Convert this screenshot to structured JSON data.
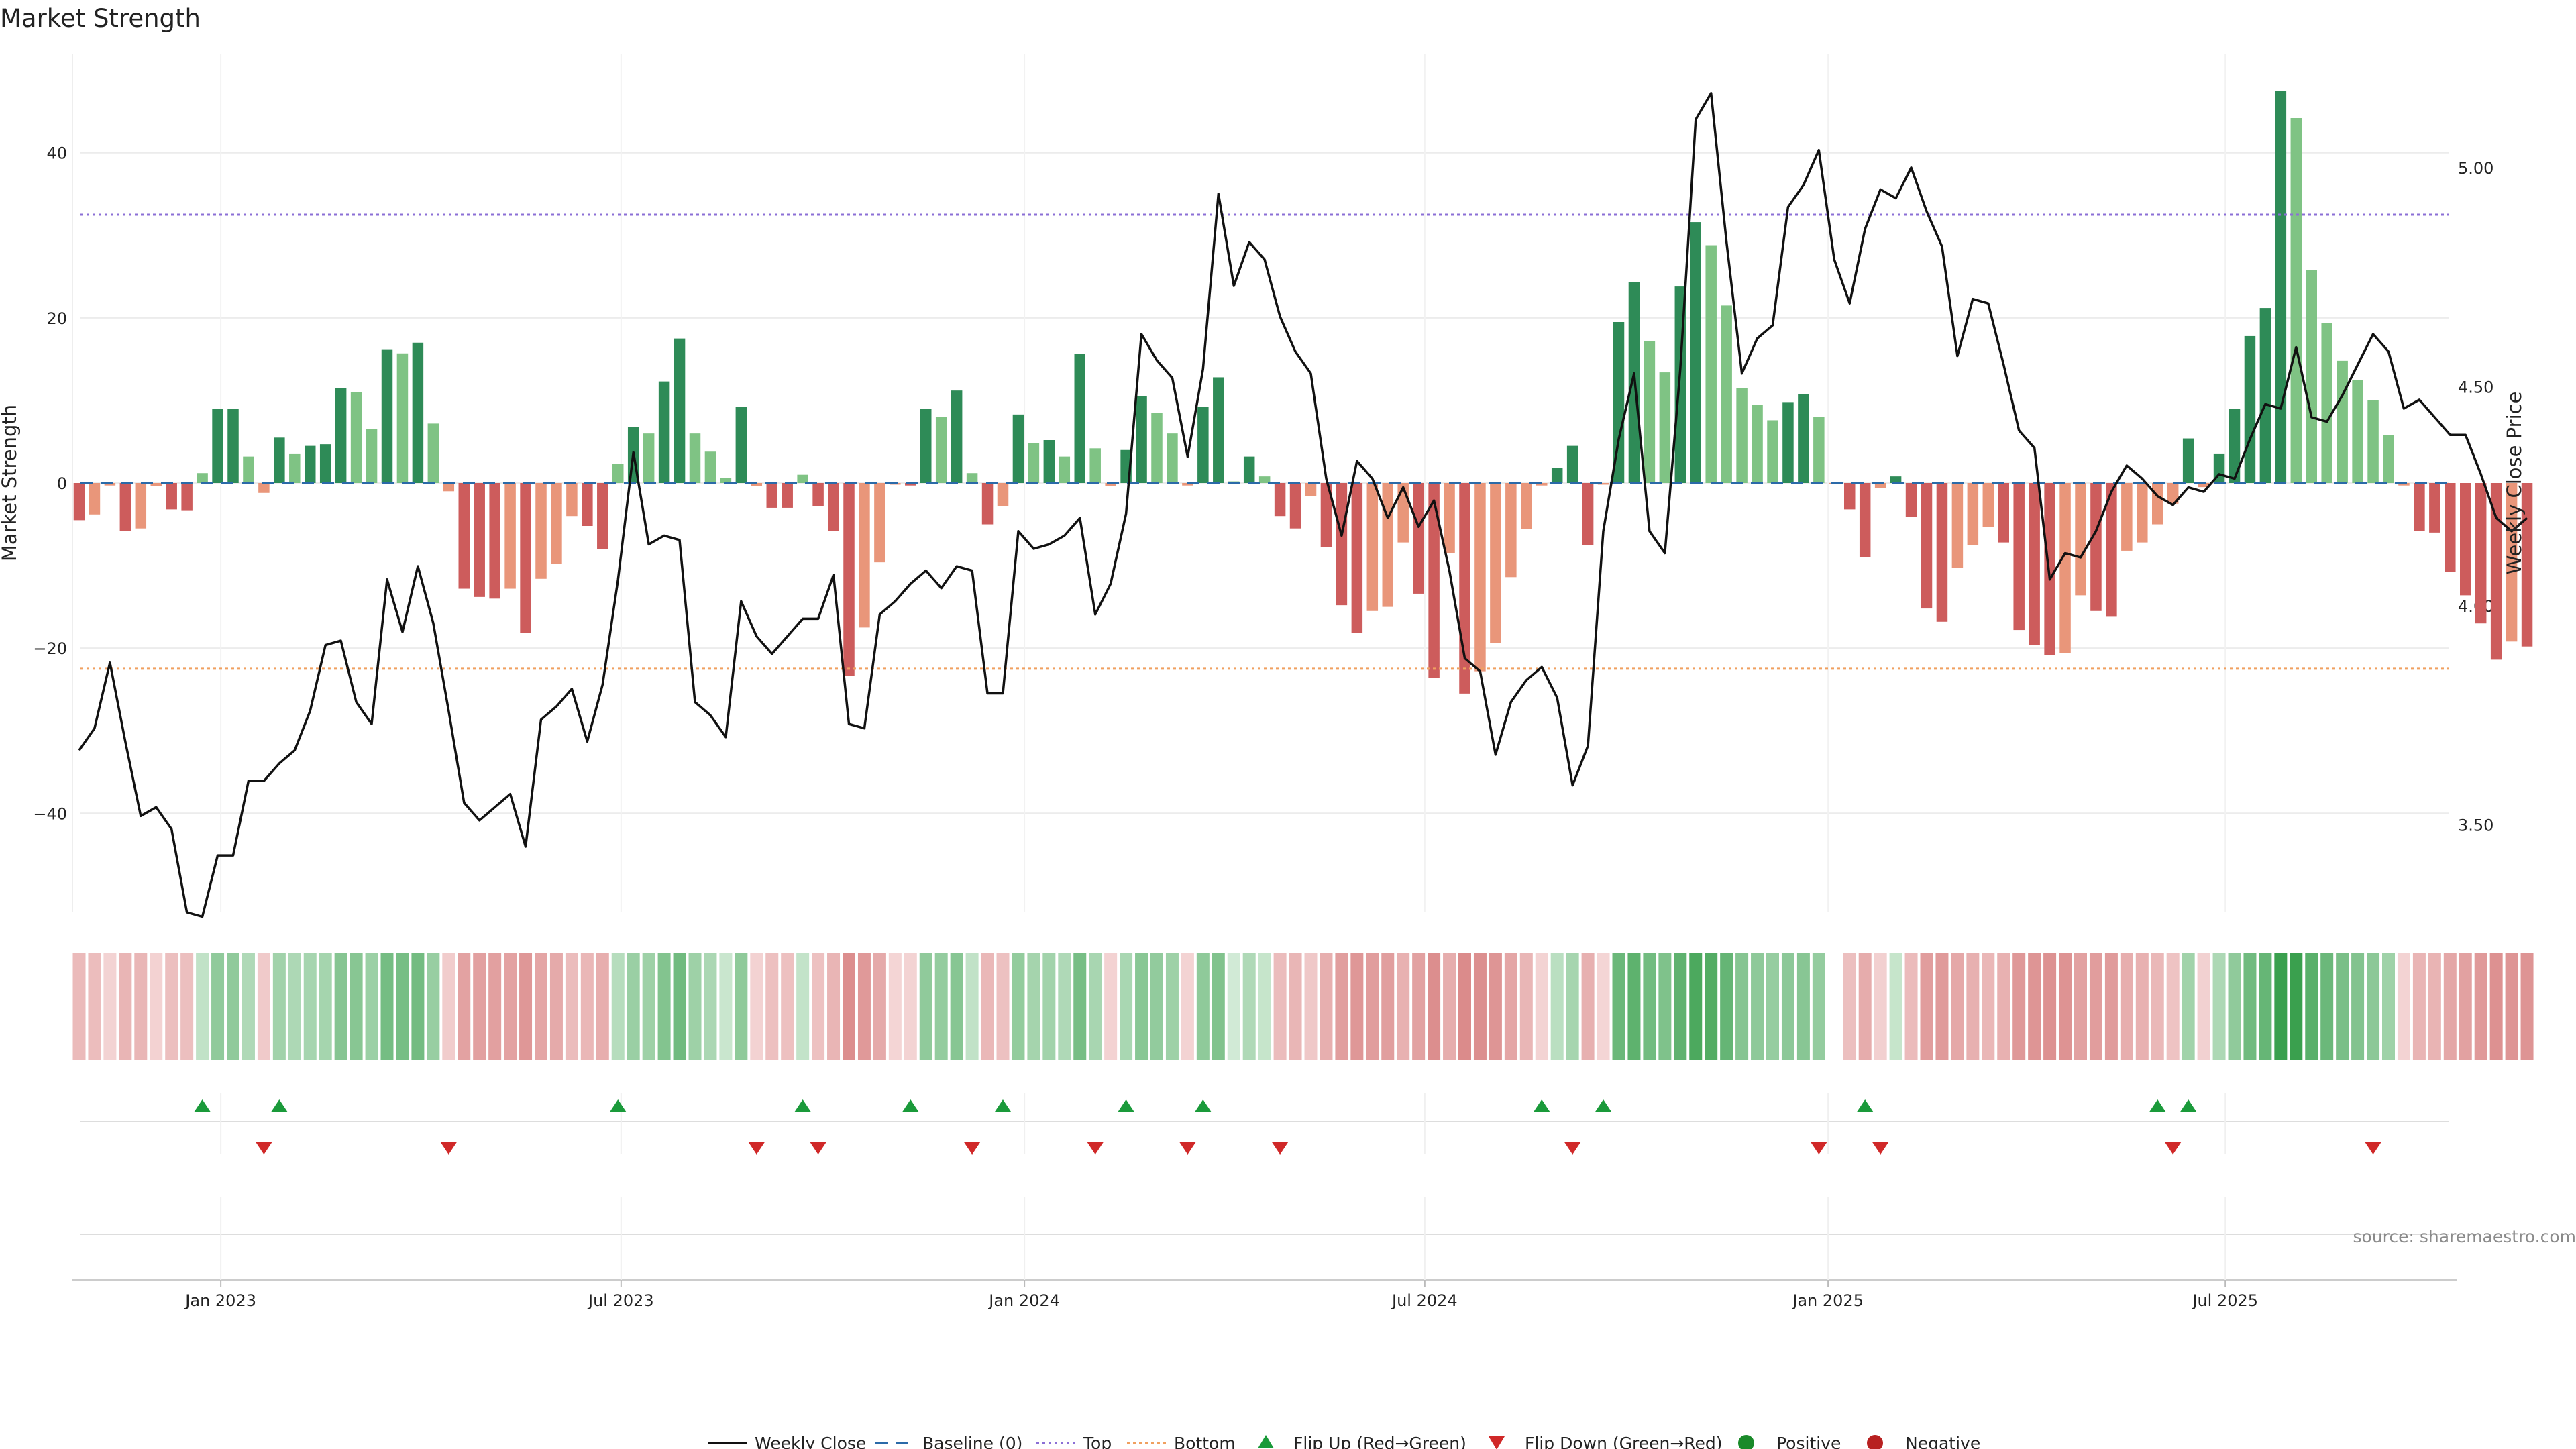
{
  "chart_data": {
    "type": "bar",
    "title": "Market Strength",
    "ylabel_left": "Market Strength",
    "ylabel_right": "Weekly Close Price",
    "ylim_left": [
      -52,
      52
    ],
    "ylim_right": [
      3.3,
      5.26
    ],
    "yticks_left": [
      "40",
      "20",
      "0",
      "−20",
      "−40"
    ],
    "ytick_values_left": [
      40,
      20,
      0,
      -20,
      -40
    ],
    "yticks_right": [
      "5.00",
      "4.50",
      "4.00",
      "3.50"
    ],
    "ytick_values_right": [
      5.0,
      4.5,
      4.0,
      3.5
    ],
    "top_line": 32.5,
    "bottom_line": -22.5,
    "x_start": "2022-10-21",
    "x_step_days": 7,
    "xticks": [
      {
        "label": "Jan 2023",
        "index": 9.2
      },
      {
        "label": "Jul 2023",
        "index": 35.2
      },
      {
        "label": "Jan 2024",
        "index": 61.4
      },
      {
        "label": "Jul 2024",
        "index": 87.4
      },
      {
        "label": "Jan 2025",
        "index": 113.6
      },
      {
        "label": "Jul 2025",
        "index": 139.4
      }
    ],
    "strength": [
      -4.5,
      -3.8,
      -0.3,
      -5.8,
      -5.5,
      -0.4,
      -3.2,
      -3.3,
      1.2,
      9.0,
      9.0,
      3.2,
      -1.2,
      5.5,
      3.5,
      4.5,
      4.7,
      11.5,
      11.0,
      6.5,
      16.2,
      15.7,
      17.0,
      7.2,
      -1.0,
      -12.8,
      -13.8,
      -14.0,
      -12.8,
      -18.2,
      -11.6,
      -9.8,
      -4.0,
      -5.2,
      -8.0,
      2.3,
      6.8,
      6.0,
      12.3,
      17.5,
      6.0,
      3.8,
      0.6,
      9.2,
      -0.4,
      -3.0,
      -3.0,
      1.0,
      -2.8,
      -5.8,
      -23.4,
      -17.5,
      -9.6,
      -0.2,
      -0.3,
      9.0,
      8.0,
      11.2,
      1.2,
      -5.0,
      -2.8,
      8.3,
      4.8,
      5.2,
      3.2,
      15.6,
      4.2,
      -0.4,
      4.0,
      10.5,
      8.5,
      6.0,
      -0.3,
      9.2,
      12.8,
      0.2,
      3.2,
      0.8,
      -4.0,
      -5.5,
      -1.6,
      -7.8,
      -14.8,
      -18.2,
      -15.5,
      -15.0,
      -7.2,
      -13.4,
      -23.6,
      -8.5,
      -25.5,
      -22.8,
      -19.4,
      -11.4,
      -5.6,
      -0.3,
      1.8,
      4.5,
      -7.5,
      -0.2,
      19.5,
      24.3,
      17.2,
      13.4,
      23.8,
      31.6,
      28.8,
      21.5,
      11.5,
      9.5,
      7.6,
      9.8,
      10.8,
      8.0,
      -0.1,
      -3.2,
      -9.0,
      -0.6,
      0.8,
      -4.1,
      -15.2,
      -16.8,
      -10.3,
      -7.5,
      -5.3,
      -7.2,
      -17.8,
      -19.6,
      -20.8,
      -20.6,
      -13.6,
      -15.5,
      -16.2,
      -8.2,
      -7.2,
      -5.0,
      -2.5,
      5.4,
      -0.5,
      3.5,
      9.0,
      17.8,
      21.2,
      47.5,
      44.2,
      25.8,
      19.4,
      14.8,
      12.5,
      10.0,
      5.8,
      -0.3,
      -5.8,
      -6.0,
      -10.8,
      -13.6,
      -17.0,
      -21.4,
      -19.2,
      -19.8
    ],
    "weekly_close": [
      3.67,
      3.72,
      3.87,
      3.69,
      3.52,
      3.54,
      3.49,
      3.3,
      3.29,
      3.43,
      3.43,
      3.6,
      3.6,
      3.64,
      3.67,
      3.76,
      3.91,
      3.92,
      3.78,
      3.73,
      4.06,
      3.94,
      4.09,
      3.96,
      3.76,
      3.55,
      3.51,
      3.54,
      3.57,
      3.45,
      3.74,
      3.77,
      3.81,
      3.69,
      3.82,
      4.06,
      4.35,
      4.14,
      4.16,
      4.15,
      3.78,
      3.75,
      3.7,
      4.01,
      3.93,
      3.89,
      3.93,
      3.97,
      3.97,
      4.07,
      3.73,
      3.72,
      3.98,
      4.01,
      4.05,
      4.08,
      4.04,
      4.09,
      4.08,
      3.8,
      3.8,
      4.17,
      4.13,
      4.14,
      4.16,
      4.2,
      3.98,
      4.05,
      4.21,
      4.62,
      4.56,
      4.52,
      4.34,
      4.54,
      4.94,
      4.73,
      4.83,
      4.79,
      4.66,
      4.58,
      4.53,
      4.29,
      4.16,
      4.33,
      4.29,
      4.2,
      4.27,
      4.18,
      4.24,
      4.08,
      3.88,
      3.85,
      3.66,
      3.78,
      3.83,
      3.86,
      3.79,
      3.59,
      3.68,
      4.17,
      4.38,
      4.53,
      4.17,
      4.12,
      4.54,
      5.11,
      5.17,
      4.83,
      4.53,
      4.61,
      4.64,
      4.91,
      4.96,
      5.04,
      4.79,
      4.69,
      4.86,
      4.95,
      4.93,
      5.0,
      4.9,
      4.82,
      4.57,
      4.7,
      4.69,
      4.55,
      4.4,
      4.36,
      4.06,
      4.12,
      4.11,
      4.17,
      4.26,
      4.32,
      4.29,
      4.25,
      4.23,
      4.27,
      4.26,
      4.3,
      4.29,
      4.38,
      4.46,
      4.45,
      4.59,
      4.43,
      4.42,
      4.48,
      4.55,
      4.62,
      4.58,
      4.45,
      4.47,
      4.43,
      4.39,
      4.39,
      4.3,
      4.2,
      4.17,
      4.2
    ]
  },
  "flips": {
    "up": [
      8,
      13,
      35,
      47,
      54,
      60,
      68,
      73,
      95,
      99,
      116,
      135,
      137
    ],
    "down": [
      12,
      24,
      44,
      48,
      58,
      66,
      72,
      78,
      97,
      113,
      117,
      136,
      149
    ]
  },
  "colors": {
    "strong_green": "#2e8b57",
    "light_green": "#7fc384",
    "strong_red": "#cd5c5c",
    "light_red": "#e9967a",
    "line": "#111111",
    "baseline": "#2b6aa8",
    "top": "#8b6fd6",
    "bottom": "#f0a060",
    "flip_up": "#1a9a3a",
    "flip_down": "#d02828",
    "positive": "#1a8a2a",
    "negative": "#b82020"
  },
  "source": "source: sharemaestro.com",
  "legend": {
    "weekly_close": "Weekly Close",
    "baseline": "Baseline (0)",
    "top": "Top",
    "bottom": "Bottom",
    "flip_up": "Flip Up (Red→Green)",
    "flip_down": "Flip Down (Green→Red)",
    "positive": "Positive",
    "negative": "Negative"
  }
}
